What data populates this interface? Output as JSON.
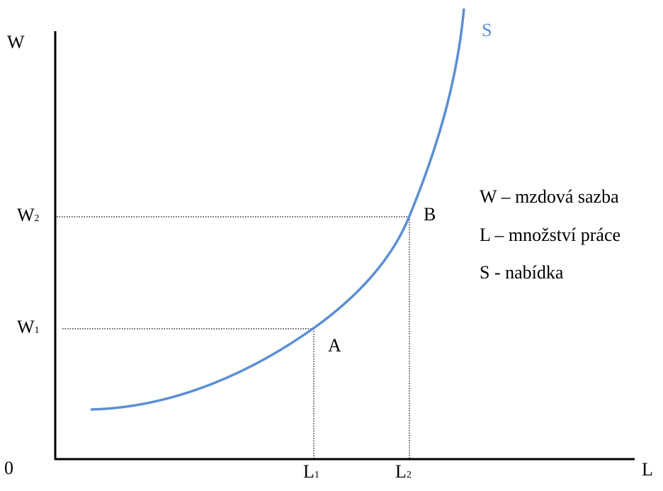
{
  "axes": {
    "y_label": "W",
    "x_label": "L",
    "origin": "0"
  },
  "curve_label": "S",
  "levels": [
    {
      "w": {
        "base": "W",
        "sub": "1"
      },
      "l": {
        "base": "L",
        "sub": "1"
      },
      "point": "A"
    },
    {
      "w": {
        "base": "W",
        "sub": "2"
      },
      "l": {
        "base": "L",
        "sub": "2"
      },
      "point": "B"
    }
  ],
  "legend": [
    "W – mzdová sazba",
    "L – množství práce",
    "S - nabídka"
  ]
}
